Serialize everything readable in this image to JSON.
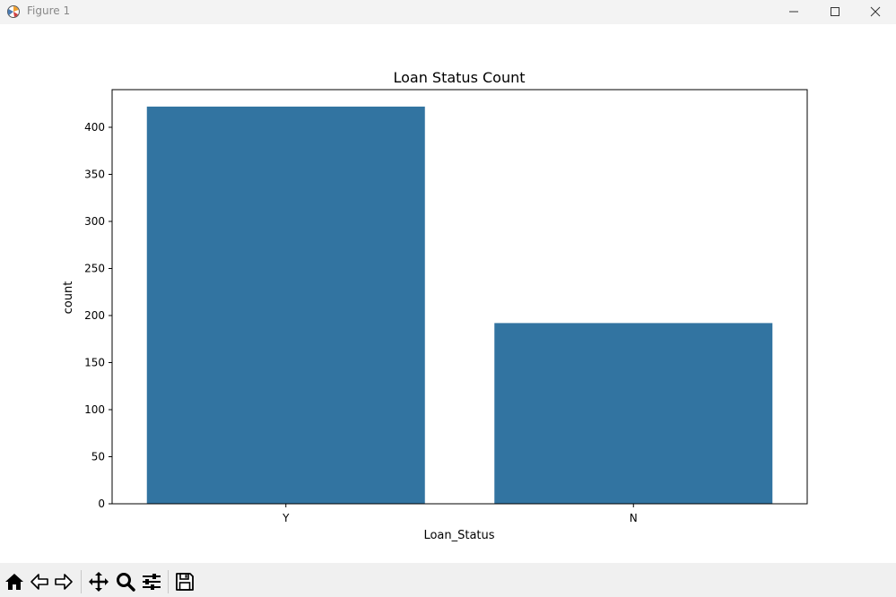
{
  "window": {
    "title": "Figure 1",
    "icons": [
      "figure-app-icon",
      "minimize-icon",
      "maximize-icon",
      "close-icon"
    ]
  },
  "toolbar": {
    "buttons": [
      "home-icon",
      "back-icon",
      "forward-icon",
      "pan-icon",
      "zoom-icon",
      "configure-subplots-icon",
      "save-icon"
    ]
  },
  "chart_data": {
    "type": "bar",
    "title": "Loan Status Count",
    "xlabel": "Loan_Status",
    "ylabel": "count",
    "categories": [
      "Y",
      "N"
    ],
    "values": [
      422,
      192
    ],
    "ylim": [
      0,
      440
    ],
    "yticks": [
      0,
      50,
      100,
      150,
      200,
      250,
      300,
      350,
      400
    ],
    "bar_color": "#3274a1",
    "grid": false
  }
}
